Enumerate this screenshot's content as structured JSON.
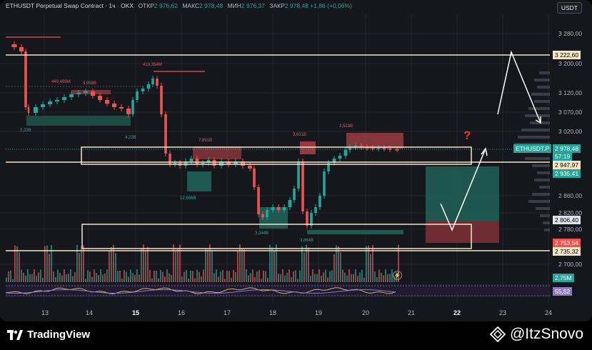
{
  "header": {
    "symbol": "ETHUSDT Perpetual Swap Contract · 1ч · OKX",
    "open_label": "ОТКР",
    "open_value": "2 976,62",
    "high_label": "МАКС",
    "high_value": "2 978,48",
    "low_label": "МИН",
    "low_value": "2 976,37",
    "close_label": "ЗАКР",
    "close_value": "2 978,48",
    "change": "+1,86 (+0,06%)"
  },
  "currency": "USDT",
  "y_ticks": [
    "3 280,00",
    "3 200,00",
    "3 120,00",
    "3 070,00",
    "3 020,00",
    "2 860,00",
    "2 820,00",
    "2 780,00",
    "2 700,00"
  ],
  "x_ticks": [
    "13",
    "14",
    "15",
    "16",
    "17",
    "18",
    "19",
    "20",
    "21",
    "22",
    "23",
    "24"
  ],
  "price_labels": {
    "level_top": "3 222,60",
    "last_symbol": "ETHUSDT.P",
    "last_price": "2 978,48",
    "countdown": "57:19",
    "level_mid": "2 947,97",
    "tp": "2 935,41",
    "entry": "2 806,40",
    "sl": "2 753,54",
    "level_low": "2 735,32",
    "volume": "2,75M",
    "osc": "55,52"
  },
  "volume_annotations": [
    "440,469M",
    "3,958B",
    "413,354M",
    "3,23B",
    "4,23B",
    "7,891B",
    "3,631B",
    "3,523B",
    "12,698B",
    "3,344B",
    "3,864B"
  ],
  "question_mark": "?",
  "footer": {
    "brand": "TradingView",
    "author": "@ItzSnovo"
  },
  "colors": {
    "up": "#26a69a",
    "down": "#ef5350",
    "background": "#16161d",
    "level_line": "#f5e6c8"
  },
  "icons": [
    "tradingview-logo-icon",
    "lightning-icon",
    "itz-logo-icon"
  ]
}
